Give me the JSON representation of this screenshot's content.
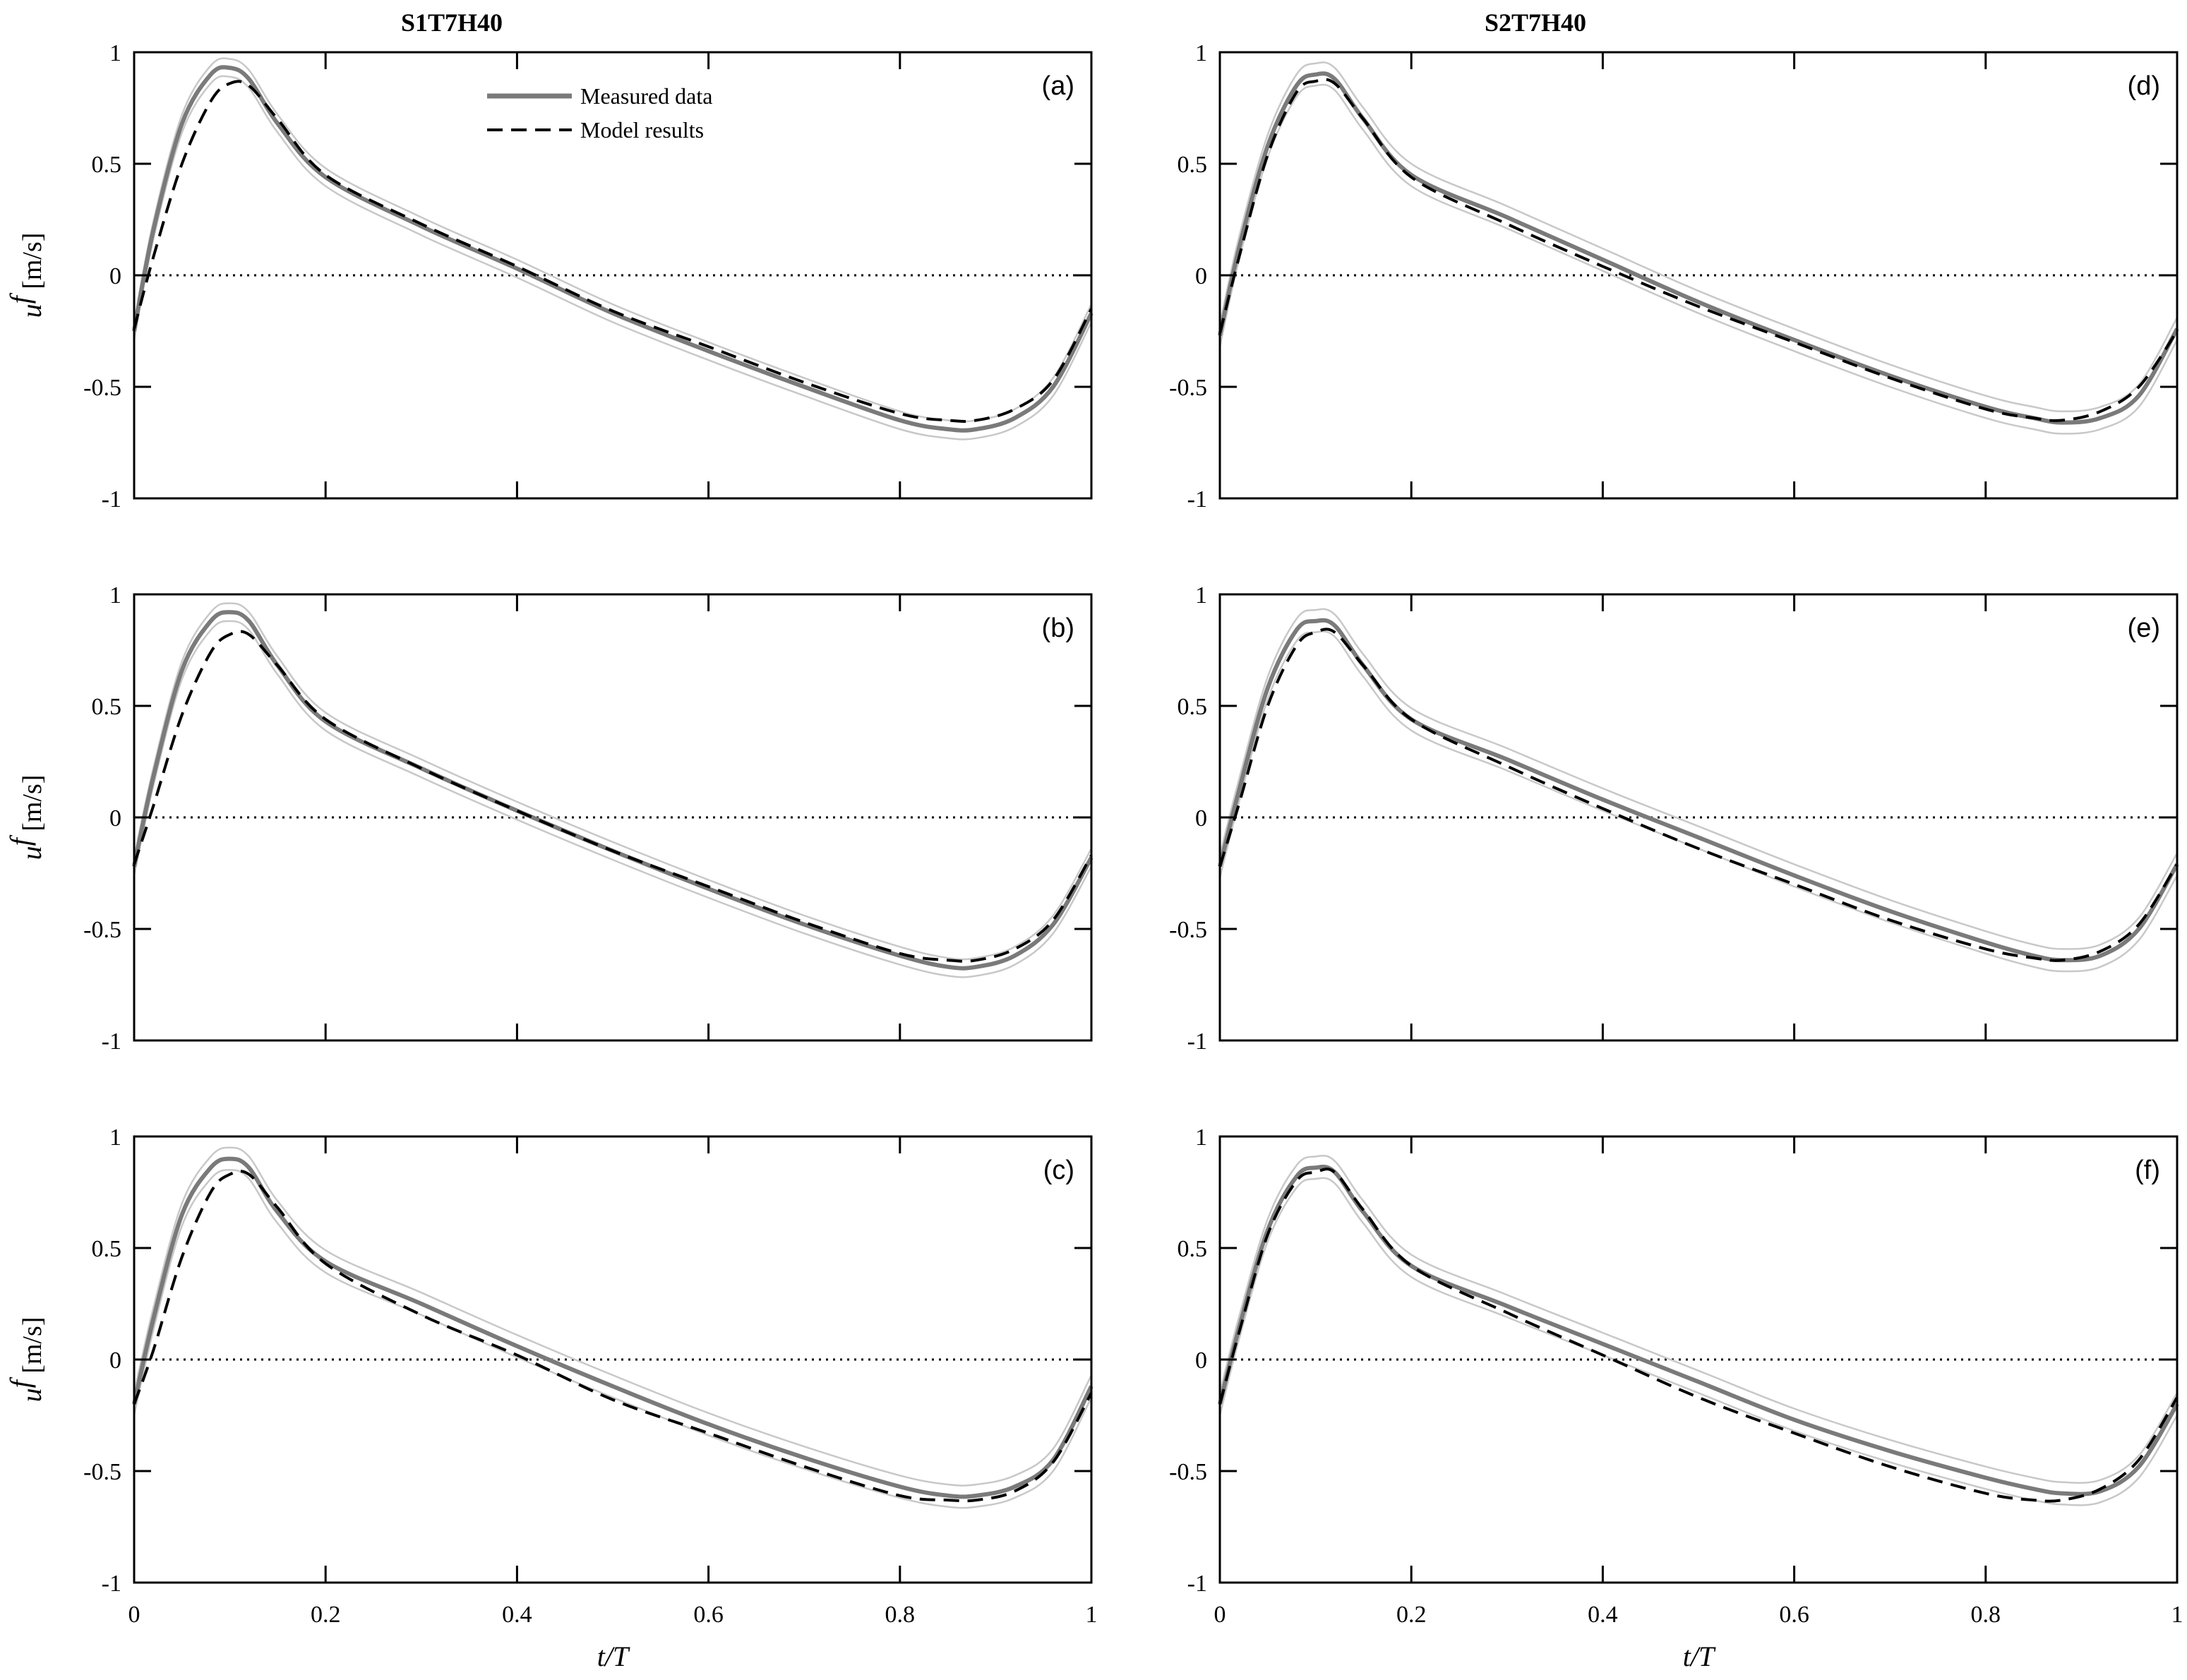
{
  "columns": [
    "S1T7H40",
    "S2T7H40"
  ],
  "axes": {
    "ylabel_var": "u",
    "ylabel_sup": "f",
    "ylabel_unit": "[m/s]",
    "xlabel": "t/T",
    "xticks": [
      "0",
      "0.2",
      "0.4",
      "0.6",
      "0.8",
      "1"
    ],
    "yticks": [
      "1",
      "0.5",
      "0",
      "-0.5",
      "-1"
    ]
  },
  "legend": {
    "measured": "Measured data",
    "model": "Model results"
  },
  "colors": {
    "measured": "#7a7a7a",
    "band": "#c8c8c8",
    "model": "#000000"
  },
  "chart_data": [
    {
      "type": "line",
      "panel": "(a)",
      "column": "S1T7H40",
      "xlabel": "",
      "ylabel": "u^f [m/s]",
      "xlim": [
        0,
        1
      ],
      "ylim": [
        -1,
        1
      ],
      "reference_line": {
        "y": 0,
        "style": "dotted"
      },
      "x": [
        0,
        0.02,
        0.05,
        0.08,
        0.1,
        0.12,
        0.15,
        0.2,
        0.3,
        0.4,
        0.5,
        0.6,
        0.7,
        0.8,
        0.85,
        0.88,
        0.92,
        0.96,
        1
      ],
      "series": [
        {
          "name": "Measured data",
          "values": [
            -0.25,
            0.2,
            0.68,
            0.9,
            0.93,
            0.88,
            0.68,
            0.44,
            0.22,
            0.03,
            -0.17,
            -0.34,
            -0.5,
            -0.65,
            -0.69,
            -0.69,
            -0.64,
            -0.5,
            -0.17
          ],
          "band": 0.04
        },
        {
          "name": "Model results",
          "values": [
            -0.24,
            0.08,
            0.5,
            0.78,
            0.86,
            0.85,
            0.7,
            0.45,
            0.23,
            0.04,
            -0.16,
            -0.32,
            -0.48,
            -0.62,
            -0.65,
            -0.65,
            -0.6,
            -0.47,
            -0.15
          ]
        }
      ]
    },
    {
      "type": "line",
      "panel": "(b)",
      "column": "S1T7H40",
      "xlabel": "",
      "ylabel": "u^f [m/s]",
      "xlim": [
        0,
        1
      ],
      "ylim": [
        -1,
        1
      ],
      "reference_line": {
        "y": 0,
        "style": "dotted"
      },
      "x": [
        0,
        0.02,
        0.05,
        0.08,
        0.1,
        0.12,
        0.15,
        0.2,
        0.3,
        0.4,
        0.5,
        0.6,
        0.7,
        0.8,
        0.85,
        0.88,
        0.92,
        0.96,
        1
      ],
      "series": [
        {
          "name": "Measured data",
          "values": [
            -0.22,
            0.18,
            0.66,
            0.88,
            0.92,
            0.88,
            0.68,
            0.43,
            0.22,
            0.03,
            -0.15,
            -0.32,
            -0.48,
            -0.62,
            -0.67,
            -0.67,
            -0.62,
            -0.48,
            -0.18
          ],
          "band": 0.04
        },
        {
          "name": "Model results",
          "values": [
            -0.21,
            0.05,
            0.46,
            0.74,
            0.82,
            0.82,
            0.68,
            0.44,
            0.22,
            0.03,
            -0.15,
            -0.31,
            -0.47,
            -0.61,
            -0.64,
            -0.64,
            -0.59,
            -0.46,
            -0.17
          ]
        }
      ]
    },
    {
      "type": "line",
      "panel": "(c)",
      "column": "S1T7H40",
      "xlabel": "t/T",
      "ylabel": "u^f [m/s]",
      "xlim": [
        0,
        1
      ],
      "ylim": [
        -1,
        1
      ],
      "reference_line": {
        "y": 0,
        "style": "dotted"
      },
      "x": [
        0,
        0.02,
        0.05,
        0.08,
        0.1,
        0.12,
        0.15,
        0.2,
        0.3,
        0.4,
        0.5,
        0.6,
        0.7,
        0.8,
        0.85,
        0.88,
        0.92,
        0.96,
        1
      ],
      "series": [
        {
          "name": "Measured data",
          "values": [
            -0.2,
            0.18,
            0.65,
            0.86,
            0.9,
            0.86,
            0.66,
            0.44,
            0.25,
            0.06,
            -0.12,
            -0.29,
            -0.44,
            -0.57,
            -0.61,
            -0.61,
            -0.57,
            -0.45,
            -0.12
          ],
          "band": 0.05
        },
        {
          "name": "Model results",
          "values": [
            -0.2,
            0.04,
            0.46,
            0.75,
            0.83,
            0.83,
            0.68,
            0.43,
            0.2,
            0.02,
            -0.18,
            -0.33,
            -0.48,
            -0.61,
            -0.63,
            -0.63,
            -0.59,
            -0.46,
            -0.15
          ]
        }
      ]
    },
    {
      "type": "line",
      "panel": "(d)",
      "column": "S2T7H40",
      "xlabel": "",
      "ylabel": "",
      "xlim": [
        0,
        1
      ],
      "ylim": [
        -1,
        1
      ],
      "reference_line": {
        "y": 0,
        "style": "dotted"
      },
      "x": [
        0,
        0.02,
        0.05,
        0.08,
        0.1,
        0.12,
        0.15,
        0.2,
        0.3,
        0.4,
        0.5,
        0.6,
        0.7,
        0.8,
        0.85,
        0.88,
        0.92,
        0.96,
        1
      ],
      "series": [
        {
          "name": "Measured data",
          "values": [
            -0.27,
            0.12,
            0.58,
            0.85,
            0.9,
            0.88,
            0.7,
            0.45,
            0.26,
            0.07,
            -0.12,
            -0.29,
            -0.45,
            -0.59,
            -0.64,
            -0.66,
            -0.64,
            -0.54,
            -0.24
          ],
          "band": 0.05
        },
        {
          "name": "Model results",
          "values": [
            -0.26,
            0.08,
            0.54,
            0.82,
            0.87,
            0.86,
            0.7,
            0.44,
            0.23,
            0.04,
            -0.14,
            -0.3,
            -0.46,
            -0.6,
            -0.64,
            -0.65,
            -0.61,
            -0.5,
            -0.25
          ]
        }
      ]
    },
    {
      "type": "line",
      "panel": "(e)",
      "column": "S2T7H40",
      "xlabel": "",
      "ylabel": "",
      "xlim": [
        0,
        1
      ],
      "ylim": [
        -1,
        1
      ],
      "reference_line": {
        "y": 0,
        "style": "dotted"
      },
      "x": [
        0,
        0.02,
        0.05,
        0.08,
        0.1,
        0.12,
        0.15,
        0.2,
        0.3,
        0.4,
        0.5,
        0.6,
        0.7,
        0.8,
        0.85,
        0.88,
        0.92,
        0.96,
        1
      ],
      "series": [
        {
          "name": "Measured data",
          "values": [
            -0.22,
            0.12,
            0.58,
            0.84,
            0.88,
            0.86,
            0.68,
            0.44,
            0.26,
            0.08,
            -0.09,
            -0.26,
            -0.42,
            -0.56,
            -0.62,
            -0.64,
            -0.62,
            -0.5,
            -0.21
          ],
          "band": 0.05
        },
        {
          "name": "Model results",
          "values": [
            -0.22,
            0.06,
            0.5,
            0.77,
            0.83,
            0.83,
            0.68,
            0.44,
            0.23,
            0.04,
            -0.14,
            -0.3,
            -0.46,
            -0.59,
            -0.63,
            -0.64,
            -0.6,
            -0.48,
            -0.21
          ]
        }
      ]
    },
    {
      "type": "line",
      "panel": "(f)",
      "column": "S2T7H40",
      "xlabel": "t/T",
      "ylabel": "",
      "xlim": [
        0,
        1
      ],
      "ylim": [
        -1,
        1
      ],
      "reference_line": {
        "y": 0,
        "style": "dotted"
      },
      "x": [
        0,
        0.02,
        0.05,
        0.08,
        0.1,
        0.12,
        0.15,
        0.2,
        0.3,
        0.4,
        0.5,
        0.6,
        0.7,
        0.8,
        0.85,
        0.88,
        0.92,
        0.96,
        1
      ],
      "series": [
        {
          "name": "Measured data",
          "values": [
            -0.2,
            0.14,
            0.58,
            0.82,
            0.86,
            0.84,
            0.66,
            0.42,
            0.24,
            0.07,
            -0.1,
            -0.27,
            -0.41,
            -0.53,
            -0.58,
            -0.6,
            -0.59,
            -0.48,
            -0.2
          ],
          "band": 0.05
        },
        {
          "name": "Model results",
          "values": [
            -0.2,
            0.12,
            0.56,
            0.8,
            0.84,
            0.84,
            0.67,
            0.42,
            0.21,
            0.02,
            -0.17,
            -0.33,
            -0.48,
            -0.6,
            -0.63,
            -0.63,
            -0.58,
            -0.45,
            -0.17
          ]
        }
      ]
    }
  ]
}
